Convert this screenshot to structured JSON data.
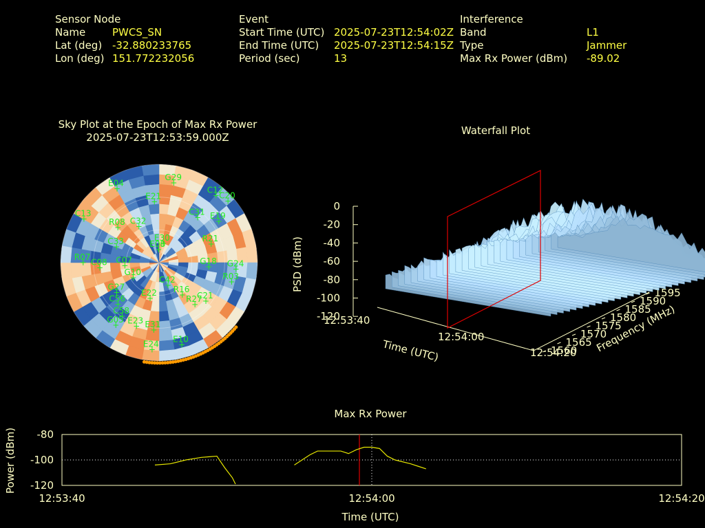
{
  "info": {
    "sensor": {
      "title": "Sensor Node",
      "name_label": "Name",
      "name_value": "PWCS_SN",
      "lat_label": "Lat (deg)",
      "lat_value": "-32.880233765",
      "lon_label": "Lon (deg)",
      "lon_value": "151.772232056"
    },
    "event": {
      "title": "Event",
      "start_label": "Start Time (UTC)",
      "start_value": "2025-07-23T12:54:02Z",
      "end_label": "End Time (UTC)",
      "end_value": "2025-07-23T12:54:15Z",
      "period_label": "Period (sec)",
      "period_value": "13"
    },
    "interference": {
      "title": "Interference",
      "band_label": "Band",
      "band_value": "L1",
      "type_label": "Type",
      "type_value": "Jammer",
      "power_label": "Max Rx Power (dBm)",
      "power_value": "-89.02"
    }
  },
  "colors": {
    "text": "#ffffc4",
    "value": "#ffff44",
    "sat": "#22ee22",
    "marker": "#e00000",
    "trace": "#e8e800"
  },
  "chart_data": [
    {
      "type": "scatter",
      "title": "Sky Plot at the Epoch of Max Rx Power",
      "subtitle": "2025-07-23T12:53:59.000Z",
      "satellites": [
        {
          "id": "E04",
          "az": 330,
          "el": 12
        },
        {
          "id": "G29",
          "az": 10,
          "el": 16
        },
        {
          "id": "E21",
          "az": 355,
          "el": 34
        },
        {
          "id": "C13",
          "az": 300,
          "el": 10
        },
        {
          "id": "C12",
          "az": 40,
          "el": 10
        },
        {
          "id": "C20",
          "az": 48,
          "el": 6
        },
        {
          "id": "C32",
          "az": 330,
          "el": 52
        },
        {
          "id": "R08",
          "az": 310,
          "el": 40
        },
        {
          "id": "C31",
          "az": 40,
          "el": 36
        },
        {
          "id": "E19",
          "az": 55,
          "el": 24
        },
        {
          "id": "C33",
          "az": 290,
          "el": 48
        },
        {
          "id": "R21",
          "az": 70,
          "el": 40
        },
        {
          "id": "E08",
          "az": 355,
          "el": 78
        },
        {
          "id": "E30",
          "az": 10,
          "el": 72
        },
        {
          "id": "R07",
          "az": 270,
          "el": 20
        },
        {
          "id": "C08",
          "az": 265,
          "el": 35
        },
        {
          "id": "C07",
          "az": 265,
          "el": 58
        },
        {
          "id": "G18",
          "az": 95,
          "el": 45
        },
        {
          "id": "G24",
          "az": 95,
          "el": 20
        },
        {
          "id": "R03",
          "az": 105,
          "el": 22
        },
        {
          "id": "G10",
          "az": 240,
          "el": 62
        },
        {
          "id": "C42",
          "az": 160,
          "el": 68
        },
        {
          "id": "G27",
          "az": 235,
          "el": 42
        },
        {
          "id": "E22",
          "az": 195,
          "el": 56
        },
        {
          "id": "C56",
          "az": 225,
          "el": 36
        },
        {
          "id": "C58",
          "az": 215,
          "el": 30
        },
        {
          "id": "R16",
          "az": 145,
          "el": 54
        },
        {
          "id": "R27",
          "az": 140,
          "el": 40
        },
        {
          "id": "C21",
          "az": 130,
          "el": 35
        },
        {
          "id": "G05",
          "az": 215,
          "el": 20
        },
        {
          "id": "E23",
          "az": 200,
          "el": 28
        },
        {
          "id": "E31",
          "az": 185,
          "el": 28
        },
        {
          "id": "E24",
          "az": 185,
          "el": 10
        },
        {
          "id": "E10",
          "az": 165,
          "el": 12
        }
      ],
      "grid": true
    },
    {
      "type": "area",
      "title": "Waterfall Plot",
      "xlabel": "Time (UTC)",
      "ylabel": "Frequency (MHz)",
      "zlabel": "PSD (dBm)",
      "x_ticks": [
        "12:53:40",
        "12:54:00",
        "12:54:20"
      ],
      "y_ticks": [
        "1560",
        "1565",
        "1570",
        "1575",
        "1580",
        "1585",
        "1590",
        "1595"
      ],
      "z_ticks": [
        "0",
        "-20",
        "-40",
        "-60",
        "-80",
        "-100",
        "-120"
      ],
      "zlim": [
        -120,
        0
      ]
    },
    {
      "type": "line",
      "title": "Max Rx Power",
      "xlabel": "Time (UTC)",
      "ylabel": "Power (dBm)",
      "ylim": [
        -120,
        -80
      ],
      "xlim": [
        0,
        40
      ],
      "x_ticks": [
        "12:53:40",
        "12:54:00",
        "12:54:20"
      ],
      "y_ticks": [
        "-80",
        "-100",
        "-120"
      ],
      "marker_x": 19.2,
      "segments": [
        [
          [
            6.0,
            -104
          ],
          [
            7.0,
            -103
          ],
          [
            8.0,
            -100
          ],
          [
            9.0,
            -98
          ],
          [
            9.5,
            -97.5
          ],
          [
            10.0,
            -97
          ],
          [
            10.5,
            -106
          ],
          [
            11.0,
            -114
          ],
          [
            11.2,
            -119
          ]
        ],
        [
          [
            15.0,
            -104
          ],
          [
            16.0,
            -96
          ],
          [
            16.5,
            -93
          ],
          [
            17.5,
            -93
          ],
          [
            18.0,
            -93
          ],
          [
            18.5,
            -95
          ],
          [
            19.0,
            -92
          ],
          [
            19.5,
            -90
          ],
          [
            20.0,
            -90
          ],
          [
            20.5,
            -91
          ],
          [
            21.0,
            -97
          ],
          [
            21.5,
            -100
          ],
          [
            22.5,
            -103
          ],
          [
            23.0,
            -105
          ],
          [
            23.5,
            -107
          ]
        ]
      ]
    }
  ]
}
